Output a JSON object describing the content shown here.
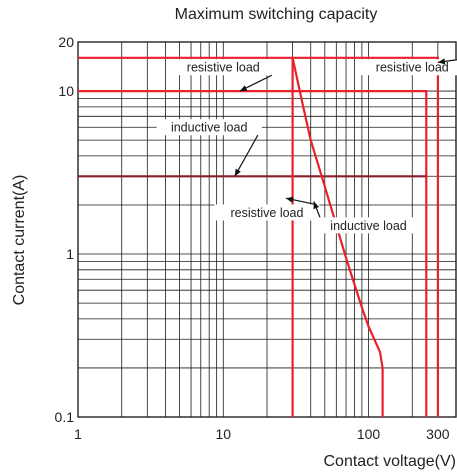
{
  "chart_data": {
    "type": "line",
    "title": "Maximum switching capacity",
    "xlabel": "Contact voltage(V)",
    "ylabel": "Contact current(A)",
    "x_scale": "log",
    "y_scale": "log",
    "xlim": [
      1,
      400
    ],
    "ylim": [
      0.1,
      20
    ],
    "x_ticks": [
      {
        "value": 1,
        "label": "1"
      },
      {
        "value": 10,
        "label": "10"
      },
      {
        "value": 100,
        "label": "100"
      },
      {
        "value": 300,
        "label": "300"
      }
    ],
    "y_ticks": [
      {
        "value": 0.1,
        "label": "0.1"
      },
      {
        "value": 1,
        "label": "1"
      },
      {
        "value": 10,
        "label": "10"
      },
      {
        "value": 20,
        "label": "20"
      }
    ],
    "grid": true,
    "series": [
      {
        "color": "#e8212b",
        "points": [
          [
            1,
            16
          ],
          [
            300,
            16
          ],
          [
            300,
            0.1
          ]
        ]
      },
      {
        "color": "#e8212b",
        "points": [
          [
            1,
            10
          ],
          [
            250,
            10
          ],
          [
            250,
            0.1
          ]
        ]
      },
      {
        "color": "#8b1e2b",
        "points": [
          [
            1,
            3
          ],
          [
            250,
            3
          ]
        ]
      },
      {
        "color": "#e8212b",
        "points": [
          [
            30,
            16
          ],
          [
            30,
            0.1
          ]
        ]
      },
      {
        "color": "#e8212b",
        "points": [
          [
            30,
            16
          ],
          [
            35,
            8.5
          ],
          [
            40,
            5
          ],
          [
            50,
            2.6
          ],
          [
            60,
            1.5
          ],
          [
            70,
            0.95
          ],
          [
            80,
            0.65
          ],
          [
            90,
            0.47
          ],
          [
            100,
            0.36
          ],
          [
            120,
            0.25
          ],
          [
            125,
            0.2
          ],
          [
            125,
            0.1
          ]
        ]
      }
    ],
    "annotations": [
      {
        "text": "resistive load",
        "box": [
          10,
          14
        ],
        "arrow_to": [
          13,
          10
        ]
      },
      {
        "text": "resistive load",
        "box": [
          200,
          14
        ],
        "arrow_to": [
          300,
          15
        ]
      },
      {
        "text": "inductive load",
        "box": [
          8,
          6
        ],
        "arrow_to": [
          12,
          3
        ]
      },
      {
        "text": "resistive load",
        "box": [
          20,
          1.8
        ],
        "arrow_to": [
          27,
          2.2
        ]
      },
      {
        "text": "inductive load",
        "box": [
          100,
          1.5
        ],
        "arrow_to": [
          42,
          2.1
        ]
      }
    ]
  }
}
